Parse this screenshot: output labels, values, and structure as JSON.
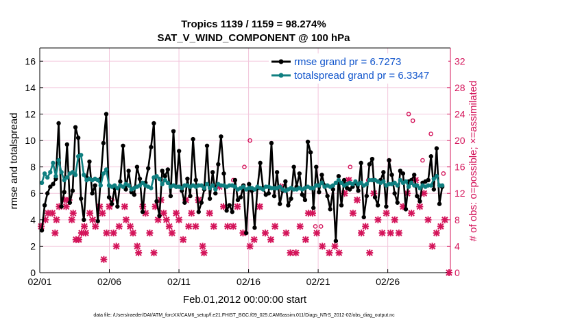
{
  "chart_data": {
    "type": "line",
    "title_line1": "Tropics 1139 / 1159 = 98.274%",
    "title_line2": "SAT_V_WIND_COMPONENT @ 100 hPa",
    "ylabel": "rmse and totalspread",
    "ylabel_right": "# of obs: o=possible; ×=assimilated",
    "xlabel": "Feb.01,2012 00:00:00 start",
    "footnote": "data file: /Users/raeder/DAI/ATM_forcXX/CAM6_setup/f.e21.FHIST_BGC.f09_025.CAM6assim.011/Diags_NTrS_2012-02/obs_diag_output.nc",
    "ylim": [
      0,
      17
    ],
    "ylim_right": [
      0,
      34
    ],
    "xlim": [
      0,
      29.5
    ],
    "xticks": [
      0,
      5,
      10,
      15,
      20,
      25
    ],
    "xtick_labels": [
      "02/01",
      "02/06",
      "02/11",
      "02/16",
      "02/21",
      "02/26"
    ],
    "yticks": [
      0,
      2,
      4,
      6,
      8,
      10,
      12,
      14,
      16
    ],
    "yticks_right": [
      0,
      4,
      8,
      12,
      16,
      20,
      24,
      28,
      32
    ],
    "legend": [
      {
        "label": "rmse grand pr = 6.7273",
        "color": "#000000"
      },
      {
        "label": "totalspread grand pr = 6.3347",
        "color": "#0f7f80"
      }
    ],
    "colors": {
      "rmse": "#000000",
      "spread": "#0f7f80",
      "obs": "#d4145a",
      "grid": "#f2c6dc"
    },
    "series": [
      {
        "name": "rmse",
        "values": [
          3.2,
          5.1,
          6.0,
          6.5,
          6.7,
          7.1,
          11.3,
          5.0,
          6.1,
          9.7,
          5.3,
          6.2,
          11.0,
          10.2,
          5.6,
          4.0,
          7.2,
          8.4,
          6.0,
          6.6,
          3.9,
          7.1,
          9.8,
          12.0,
          5.7,
          5.2,
          6.4,
          5.0,
          6.9,
          9.6,
          6.3,
          7.7,
          6.1,
          5.9,
          8.0,
          7.1,
          4.6,
          6.8,
          7.9,
          9.5,
          11.3,
          5.4,
          4.3,
          7.7,
          7.3,
          7.8,
          5.8,
          10.7,
          6.5,
          9.2,
          6.2,
          5.3,
          7.1,
          5.8,
          10.1,
          7.0,
          4.6,
          5.3,
          6.3,
          9.6,
          5.6,
          7.6,
          6.0,
          8.2,
          10.3,
          7.5,
          4.7,
          5.1,
          4.6,
          7.0,
          5.5,
          5.7,
          6.6,
          3.0,
          6.7,
          6.2,
          3.4,
          6.4,
          8.3,
          6.4,
          5.9,
          6.0,
          9.8,
          5.8,
          7.6,
          5.2,
          6.2,
          6.9,
          5.1,
          5.6,
          8.0,
          6.5,
          7.5,
          5.9,
          5.5,
          9.9,
          9.1,
          4.9,
          8.0,
          6.1,
          7.4,
          6.6,
          5.8,
          4.8,
          6.3,
          2.4,
          7.3,
          5.1,
          7.0,
          6.4,
          6.3,
          6.5,
          6.8,
          6.2,
          8.3,
          4.2,
          5.8,
          8.2,
          8.6,
          5.7,
          5.1,
          7.0,
          7.6,
          5.0,
          8.5,
          7.4,
          6.0,
          5.3,
          7.7,
          7.5,
          4.8,
          6.9,
          7.0,
          7.4,
          5.8,
          5.4,
          6.8,
          6.9,
          7.0,
          8.8,
          6.3,
          9.4,
          5.2,
          6.5
        ]
      },
      {
        "name": "totalspread",
        "values": [
          6.8,
          7.5,
          7.2,
          7.6,
          8.3,
          7.3,
          8.5,
          7.6,
          7.0,
          7.2,
          7.5,
          7.6,
          7.4,
          8.8,
          8.9,
          7.4,
          7.0,
          7.1,
          7.0,
          7.1,
          7.0,
          6.6,
          7.5,
          7.8,
          6.6,
          6.5,
          6.6,
          6.4,
          6.6,
          6.5,
          6.7,
          6.6,
          6.3,
          6.4,
          6.5,
          6.6,
          6.8,
          6.6,
          6.5,
          6.4,
          7.2,
          7.3,
          7.1,
          6.7,
          7.0,
          6.8,
          6.5,
          6.6,
          6.5,
          6.5,
          6.4,
          6.6,
          6.6,
          6.5,
          6.6,
          6.5,
          6.6,
          6.6,
          6.4,
          6.7,
          6.4,
          6.6,
          6.3,
          6.7,
          6.6,
          6.6,
          6.5,
          6.6,
          6.6,
          6.5,
          6.3,
          6.4,
          6.5,
          6.3,
          6.4,
          6.4,
          6.3,
          6.5,
          6.4,
          6.3,
          6.5,
          6.5,
          6.4,
          6.4,
          6.4,
          6.5,
          6.3,
          6.2,
          6.3,
          6.4,
          6.3,
          6.3,
          6.4,
          6.3,
          6.4,
          6.5,
          6.4,
          6.4,
          6.6,
          6.6,
          6.8,
          6.5,
          6.6,
          6.5,
          6.6,
          6.8,
          7.0,
          6.8,
          6.6,
          6.7,
          6.8,
          6.7,
          6.9,
          6.7,
          6.8,
          6.6,
          6.7,
          7.0,
          7.0,
          7.0,
          6.9,
          6.8,
          6.9,
          6.6,
          6.7,
          6.7,
          6.8,
          6.6,
          7.0,
          6.8,
          6.9,
          6.5,
          6.8,
          6.6,
          6.6,
          6.4,
          6.6,
          6.5,
          6.6,
          6.6,
          7.1,
          7.3,
          6.6,
          6.6
        ]
      },
      {
        "name": "obs_assimilated",
        "x": [
          0.1,
          0.4,
          0.6,
          0.9,
          1.1,
          1.2,
          1.4,
          1.8,
          1.9,
          2.1,
          2.3,
          2.4,
          2.6,
          2.8,
          3.0,
          3.2,
          3.3,
          3.6,
          3.8,
          4.0,
          4.3,
          4.5,
          4.6,
          4.8,
          5.0,
          5.3,
          5.5,
          5.7,
          6.1,
          6.2,
          6.5,
          6.7,
          7.0,
          7.1,
          7.4,
          7.6,
          7.9,
          8.2,
          8.3,
          8.5,
          8.7,
          8.9,
          9.1,
          9.3,
          9.5,
          9.8,
          10.0,
          10.3,
          10.5,
          10.7,
          10.9,
          11.2,
          11.4,
          11.7,
          11.8,
          12.2,
          12.5,
          12.9,
          13.2,
          13.5,
          13.9,
          14.2,
          14.6,
          15.1,
          15.4,
          15.8,
          16.2,
          16.6,
          16.9,
          17.3,
          17.7,
          18.0,
          18.4,
          18.7,
          19.1,
          19.3,
          19.6,
          19.9,
          20.3,
          20.8,
          21.2,
          21.5,
          21.9,
          22.2,
          22.5,
          22.8,
          23.1,
          23.4,
          23.7,
          24.0,
          24.3,
          24.6,
          24.9,
          25.2,
          25.5,
          25.8,
          26.1,
          26.4,
          26.7,
          27.0,
          27.3,
          27.6,
          27.9,
          28.2,
          28.5,
          28.8,
          29.1,
          29.4
        ],
        "values": [
          7,
          8,
          9,
          9,
          6,
          8,
          10,
          11,
          10,
          11,
          8,
          9,
          5,
          5,
          6,
          7,
          6,
          9,
          8,
          7,
          10,
          9,
          2,
          6,
          10,
          6,
          4,
          7,
          10,
          8,
          7,
          6,
          4,
          3,
          10,
          9,
          6,
          3,
          10,
          8,
          11,
          9,
          8,
          7,
          6,
          9,
          8,
          5,
          11,
          7,
          9,
          7,
          11,
          4,
          3,
          9,
          7,
          13,
          10,
          7,
          7,
          10,
          6,
          4,
          5,
          10,
          6,
          5,
          7,
          13,
          6,
          3,
          3,
          7,
          5,
          9,
          9,
          6,
          4,
          3,
          4,
          3,
          12,
          14,
          9,
          11,
          6,
          7,
          3,
          12,
          8,
          6,
          9,
          6,
          8,
          6,
          10,
          12,
          9,
          14,
          10,
          12,
          8,
          4,
          6,
          7,
          8,
          0
        ]
      },
      {
        "name": "obs_possible",
        "x": [
          5.2,
          13.9,
          14.7,
          15.1,
          19.8,
          20.2,
          22.3,
          23.6,
          25.1,
          26.5,
          26.8,
          27.5,
          28.1,
          29.0
        ],
        "values": [
          11,
          14,
          16,
          20,
          7,
          7,
          16,
          14,
          17,
          24,
          23,
          17,
          21,
          15
        ]
      }
    ]
  }
}
